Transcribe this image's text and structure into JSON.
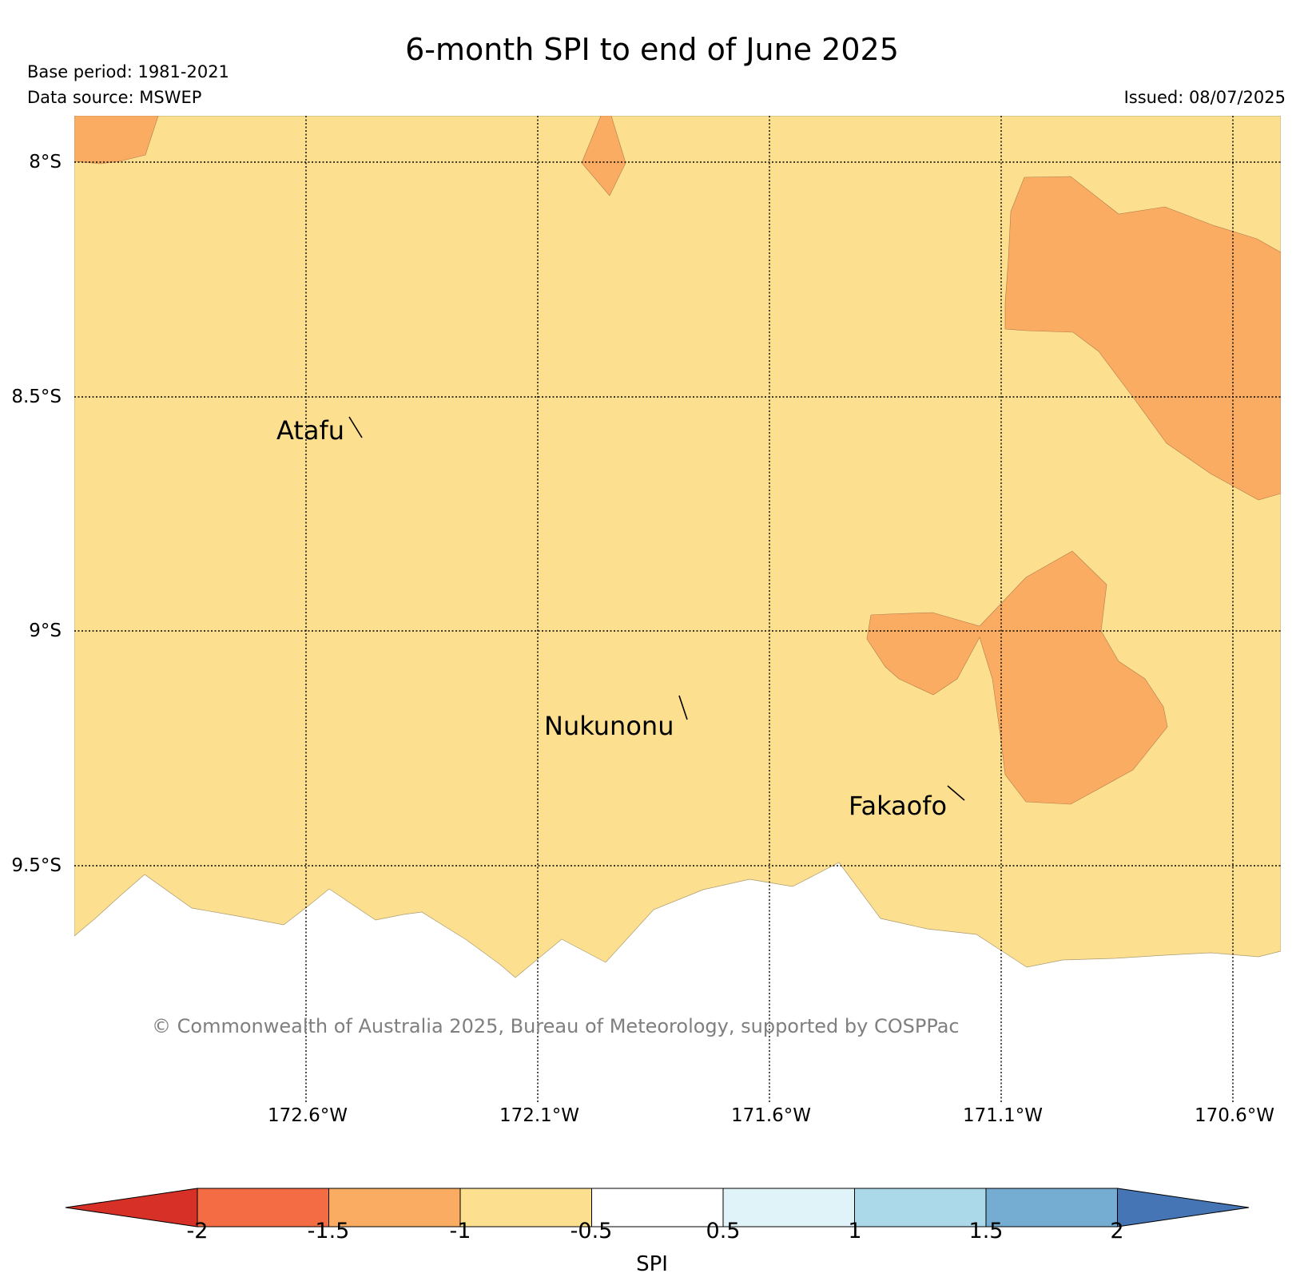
{
  "header": {
    "title": "6-month SPI to end of June 2025",
    "base_period": "Base period: 1981-2021",
    "data_source": "Data source: MSWEP",
    "issued": "Issued: 08/07/2025"
  },
  "map": {
    "lat_labels": [
      "8°S",
      "8.5°S",
      "9°S",
      "9.5°S"
    ],
    "lon_labels": [
      "172.6°W",
      "172.1°W",
      "171.6°W",
      "171.1°W",
      "170.6°W"
    ],
    "places": [
      {
        "name": "Atafu"
      },
      {
        "name": "Nukunonu"
      },
      {
        "name": "Fakaofo"
      }
    ],
    "copyright": "© Commonwealth of Australia 2025, Bureau of Meteorology, supported by COSPPac",
    "colors": {
      "spi_-1_to_-0.5": "#fddf90",
      "spi_-1.5_to_-1": "#faad62",
      "no_data": "#ffffff"
    }
  },
  "colorbar": {
    "label": "SPI",
    "ticks": [
      "-2",
      "-1.5",
      "-1",
      "-0.5",
      "0.5",
      "1",
      "1.5",
      "2"
    ],
    "colors": [
      "#d73127",
      "#f46c43",
      "#faad62",
      "#fddf90",
      "#ffffff",
      "#e0f3f8",
      "#acd9e9",
      "#74add1",
      "#4575b4"
    ]
  }
}
